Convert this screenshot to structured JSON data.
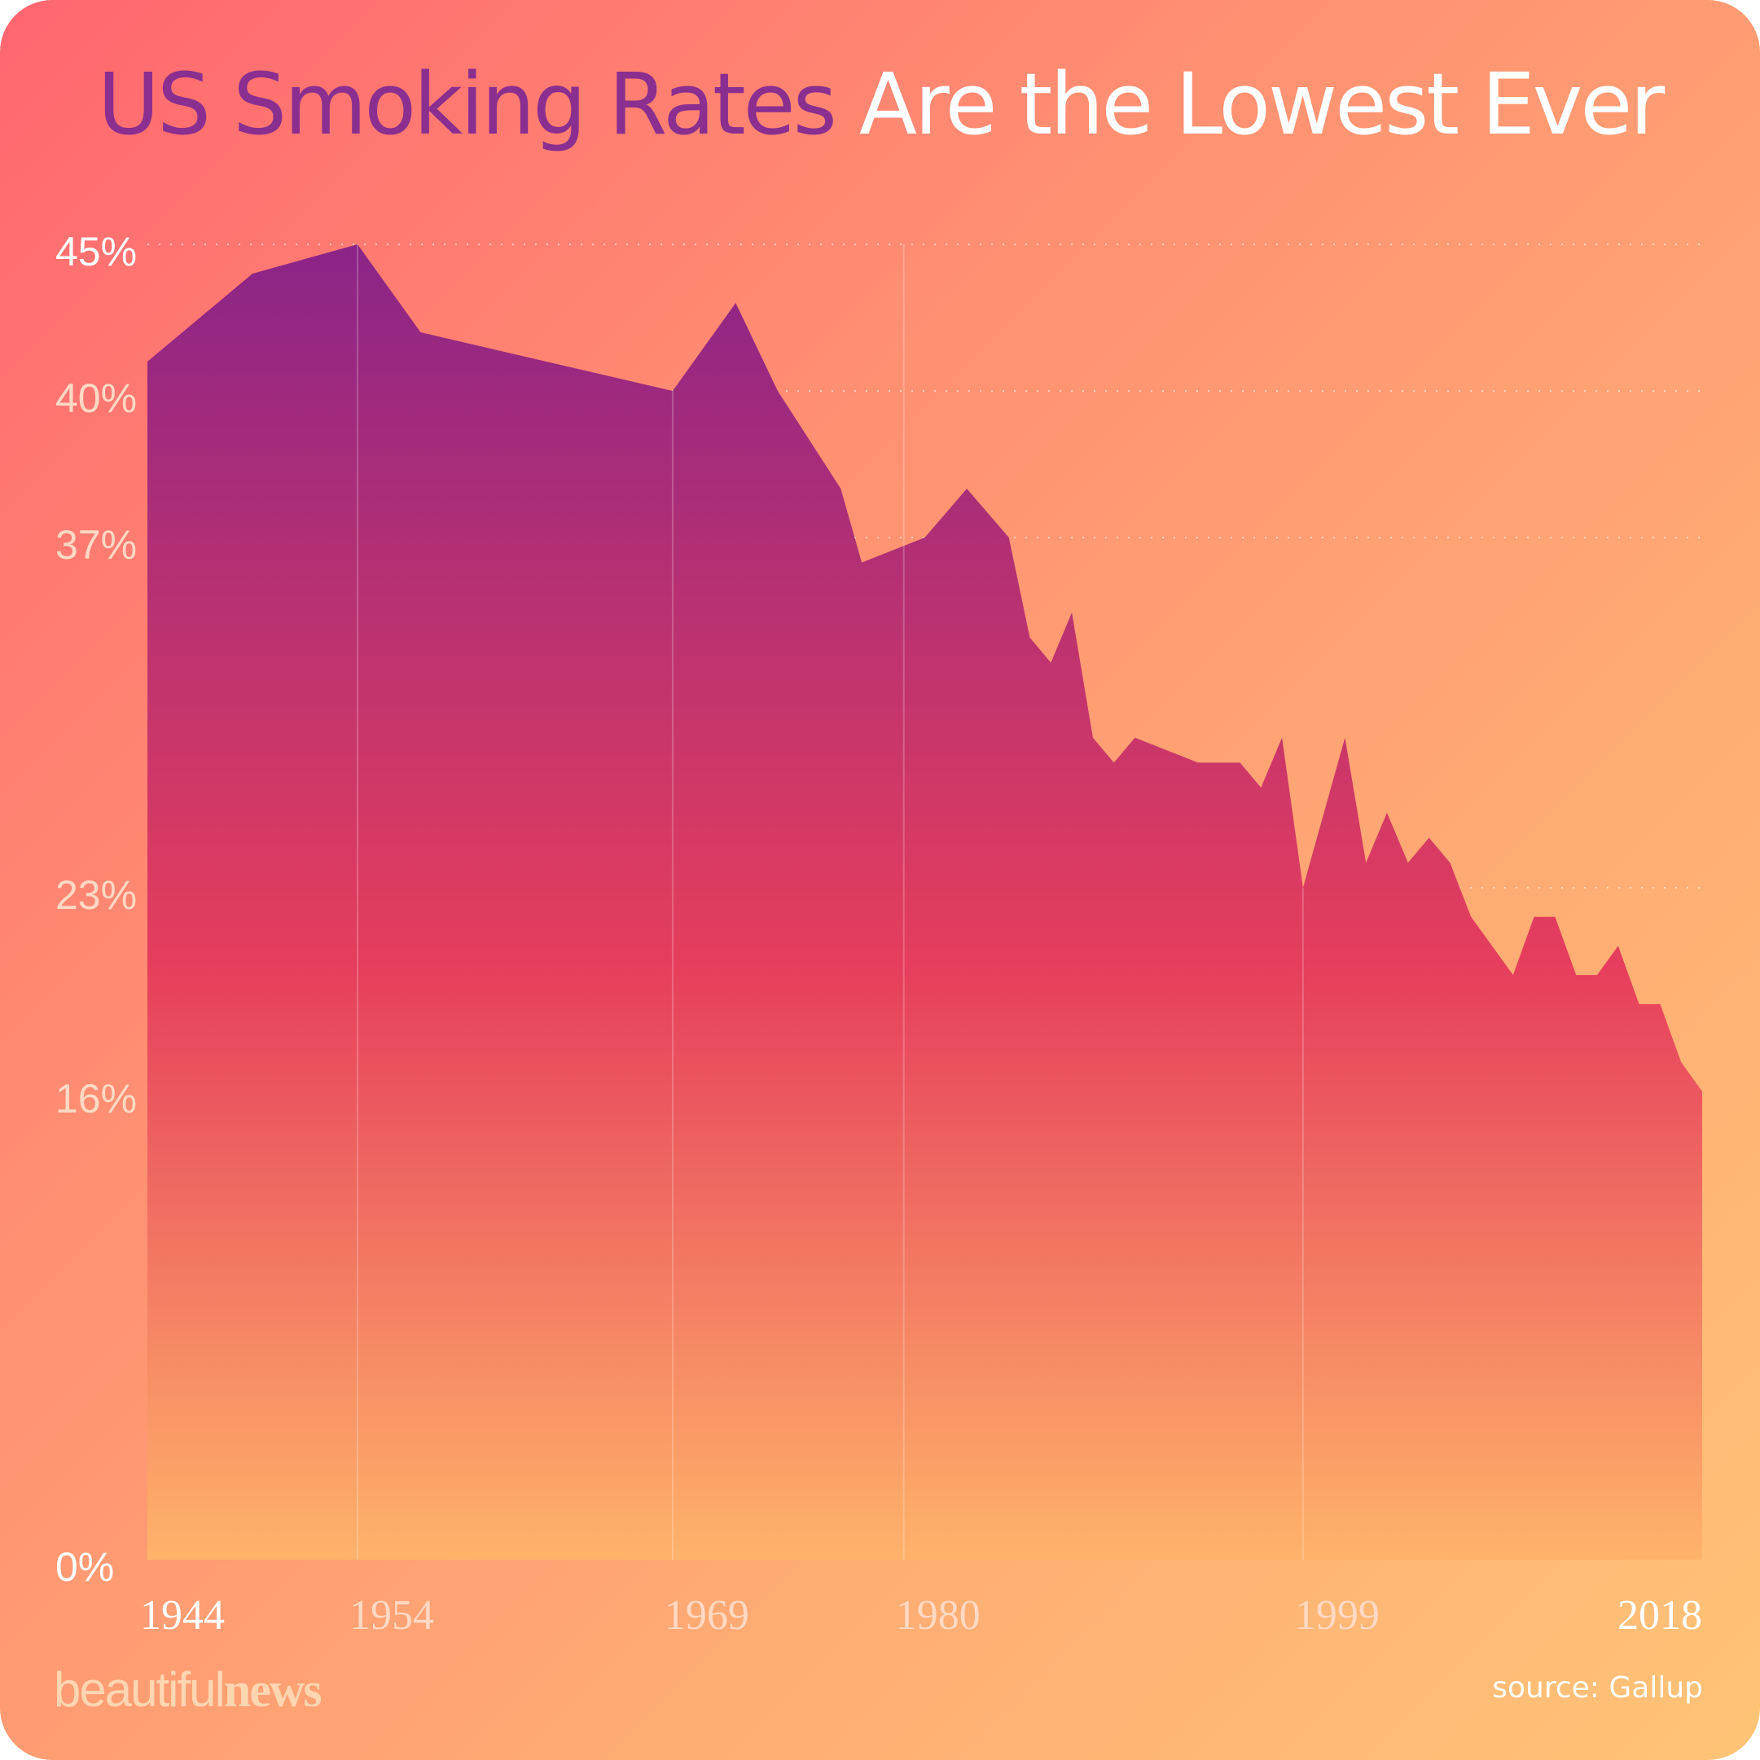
{
  "title": {
    "highlight": "US Smoking Rates",
    "rest": "Are the Lowest Ever"
  },
  "brand": {
    "part1": "beautiful",
    "part2": "news"
  },
  "source": "source: Gallup",
  "colors": {
    "area_top": "#8b2487",
    "area_mid": "#e63e5c",
    "area_bottom": "#ffb36a",
    "highlight_text": "#8a2e8f",
    "tick_label_bright": "#ffffff",
    "tick_label_dim": "#ffd9c4"
  },
  "chart_data": {
    "type": "area",
    "title": "US Smoking Rates Are the Lowest Ever",
    "xlabel": "",
    "ylabel": "",
    "ylim": [
      0,
      45
    ],
    "grid": "horizontal dotted",
    "y_ticks": [
      {
        "label": "45%",
        "value": 45,
        "bright": true
      },
      {
        "label": "40%",
        "value": 40,
        "bright": false
      },
      {
        "label": "37%",
        "value": 37,
        "bright": false
      },
      {
        "label": "23%",
        "value": 23,
        "bright": false
      },
      {
        "label": "16%",
        "value": 16,
        "bright": false
      },
      {
        "label": "0%",
        "value": 0,
        "bright": true
      }
    ],
    "x_ticks": [
      {
        "label": "1944",
        "value": 1944,
        "bright": true
      },
      {
        "label": "1954",
        "value": 1954,
        "bright": false
      },
      {
        "label": "1969",
        "value": 1969,
        "bright": false
      },
      {
        "label": "1980",
        "value": 1980,
        "bright": false
      },
      {
        "label": "1999",
        "value": 1999,
        "bright": false
      },
      {
        "label": "2018",
        "value": 2018,
        "bright": true
      }
    ],
    "points": [
      [
        1944,
        41
      ],
      [
        1949,
        44
      ],
      [
        1954,
        45
      ],
      [
        1957,
        42
      ],
      [
        1969,
        40
      ],
      [
        1972,
        43
      ],
      [
        1974,
        40
      ],
      [
        1977,
        38
      ],
      [
        1978,
        36
      ],
      [
        1981,
        37
      ],
      [
        1983,
        38
      ],
      [
        1985,
        37
      ],
      [
        1986,
        33
      ],
      [
        1987,
        32
      ],
      [
        1988,
        34
      ],
      [
        1989,
        29
      ],
      [
        1990,
        28
      ],
      [
        1991,
        29
      ],
      [
        1994,
        28
      ],
      [
        1996,
        28
      ],
      [
        1997,
        27
      ],
      [
        1998,
        29
      ],
      [
        1999,
        23
      ],
      [
        2000,
        26
      ],
      [
        2001,
        29
      ],
      [
        2002,
        24
      ],
      [
        2003,
        26
      ],
      [
        2004,
        24
      ],
      [
        2005,
        25
      ],
      [
        2006,
        24
      ],
      [
        2007,
        22
      ],
      [
        2008,
        21
      ],
      [
        2009,
        20
      ],
      [
        2010,
        22
      ],
      [
        2011,
        22
      ],
      [
        2012,
        20
      ],
      [
        2013,
        20
      ],
      [
        2014,
        21
      ],
      [
        2015,
        19
      ],
      [
        2016,
        19
      ],
      [
        2017,
        17
      ],
      [
        2018,
        16
      ]
    ]
  }
}
